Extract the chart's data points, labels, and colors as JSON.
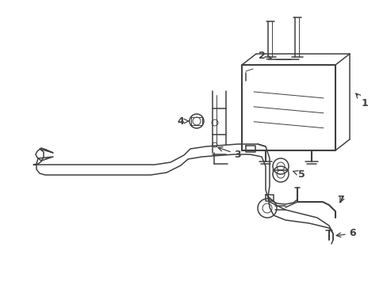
{
  "bg_color": "#ffffff",
  "line_color": "#404040",
  "label_color": "#404040",
  "lw": 1.1,
  "lw_thick": 1.5,
  "lw_thin": 0.7
}
